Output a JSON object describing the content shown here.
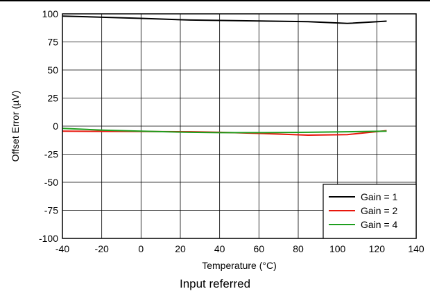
{
  "caption": "Input referred",
  "chart_data": {
    "type": "line",
    "xlabel": "Temperature (°C)",
    "ylabel": "Offset Error (µV)",
    "xlim": [
      -40,
      140
    ],
    "ylim": [
      -100,
      100
    ],
    "xticks": [
      -40,
      -20,
      0,
      20,
      40,
      60,
      80,
      100,
      120,
      140
    ],
    "yticks": [
      100,
      75,
      50,
      25,
      0,
      -25,
      -50,
      -75,
      -100
    ],
    "grid": true,
    "legend_position": "bottom-right",
    "series": [
      {
        "name": "Gain = 1",
        "color": "#000000",
        "x": [
          -40,
          0,
          25,
          85,
          105,
          125
        ],
        "y": [
          98,
          96,
          94.5,
          93,
          91.5,
          93.5
        ]
      },
      {
        "name": "Gain = 2",
        "color": "#e8160c",
        "x": [
          -40,
          0,
          25,
          40,
          60,
          85,
          105,
          125
        ],
        "y": [
          -4.5,
          -4.8,
          -5,
          -5.5,
          -6.5,
          -8,
          -7.5,
          -4
        ]
      },
      {
        "name": "Gain = 4",
        "color": "#1e9e1e",
        "x": [
          -40,
          -20,
          0,
          25,
          40,
          60,
          85,
          105,
          125
        ],
        "y": [
          -2,
          -3.5,
          -4.5,
          -5.5,
          -5.8,
          -5.8,
          -5.5,
          -5,
          -4.5
        ]
      }
    ]
  }
}
